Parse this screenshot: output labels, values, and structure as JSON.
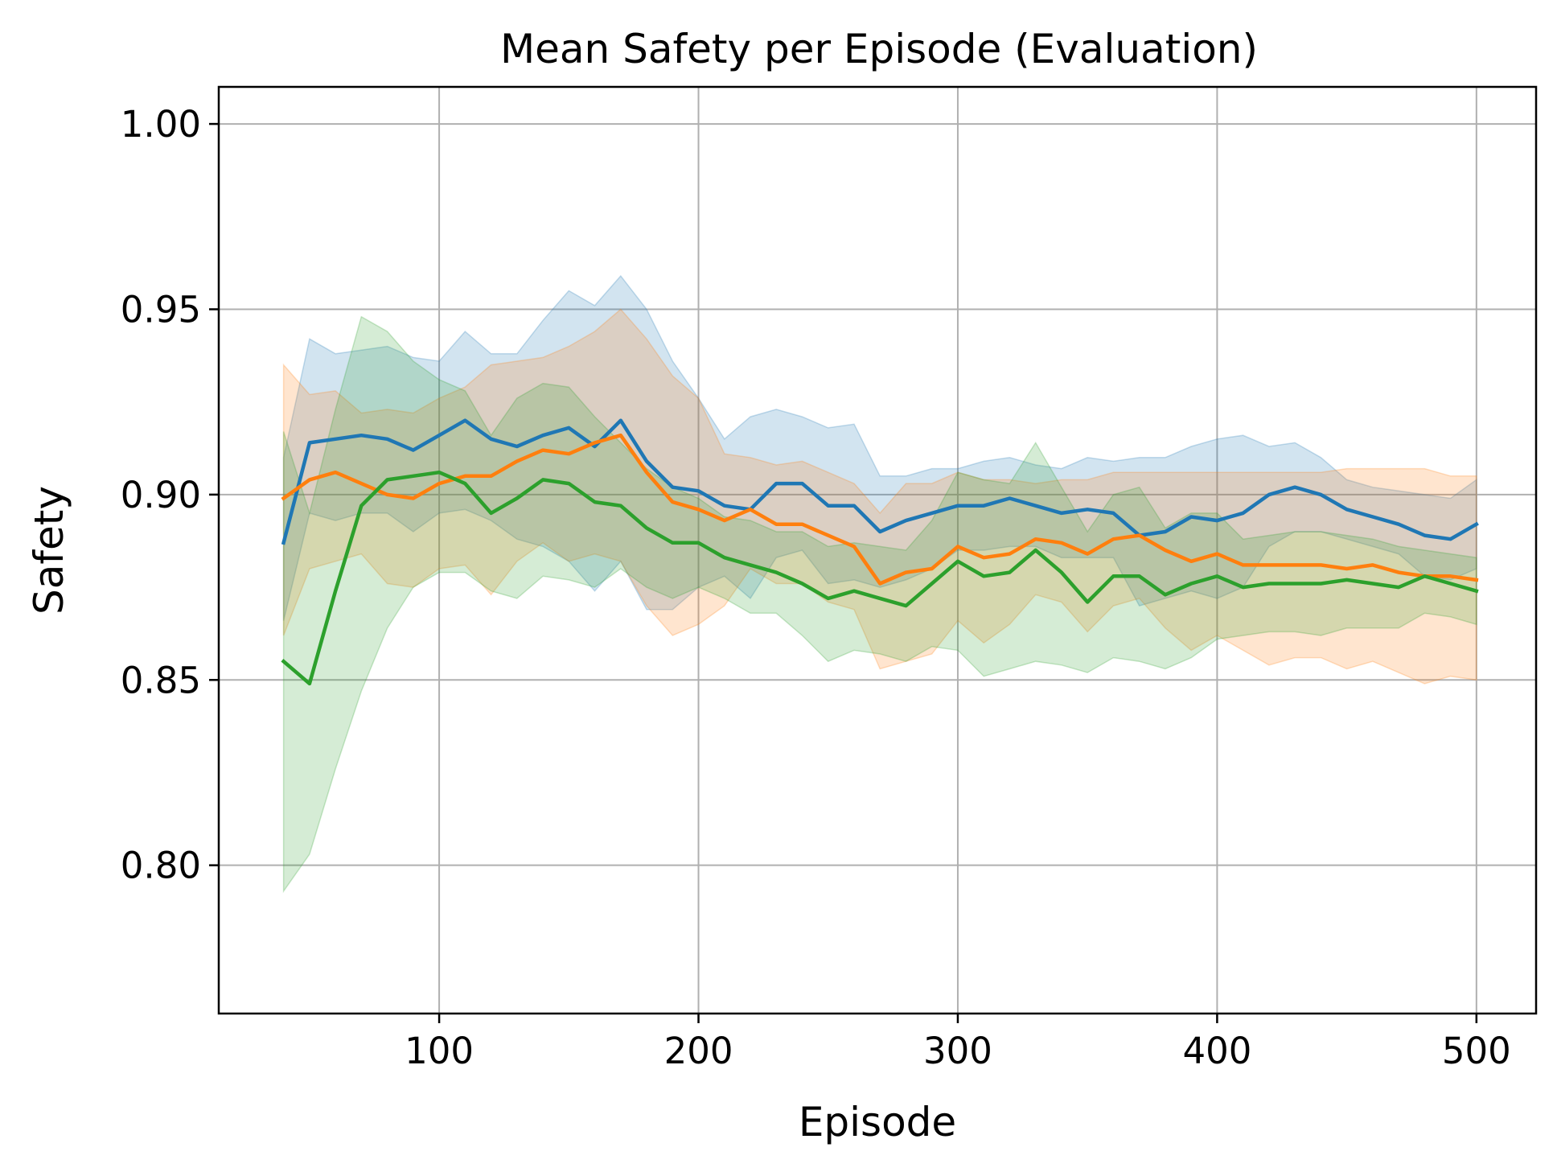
{
  "chart_data": {
    "type": "line",
    "title": "Mean Safety per Episode (Evaluation)",
    "xlabel": "Episode",
    "ylabel": "Safety",
    "xlim": [
      15,
      523
    ],
    "ylim": [
      0.76,
      1.01
    ],
    "xticks": [
      100,
      200,
      300,
      400,
      500
    ],
    "xtick_labels": [
      "100",
      "200",
      "300",
      "400",
      "500"
    ],
    "yticks": [
      0.8,
      0.85,
      0.9,
      0.95,
      1.0
    ],
    "ytick_labels": [
      "0.80",
      "0.85",
      "0.90",
      "0.95",
      "1.00"
    ],
    "grid": true,
    "x": [
      40,
      50,
      60,
      70,
      80,
      90,
      100,
      110,
      120,
      130,
      140,
      150,
      160,
      170,
      180,
      190,
      200,
      210,
      220,
      230,
      240,
      250,
      260,
      270,
      280,
      290,
      300,
      310,
      320,
      330,
      340,
      350,
      360,
      370,
      380,
      390,
      400,
      410,
      420,
      430,
      440,
      450,
      460,
      470,
      480,
      490,
      500
    ],
    "series": [
      {
        "name": "blue",
        "color": "#1f77b4",
        "values": [
          0.887,
          0.914,
          0.915,
          0.916,
          0.915,
          0.912,
          0.916,
          0.92,
          0.915,
          0.913,
          0.916,
          0.918,
          0.913,
          0.92,
          0.909,
          0.902,
          0.901,
          0.897,
          0.896,
          0.903,
          0.903,
          0.897,
          0.897,
          0.89,
          0.893,
          0.895,
          0.897,
          0.897,
          0.899,
          0.897,
          0.895,
          0.896,
          0.895,
          0.889,
          0.89,
          0.894,
          0.893,
          0.895,
          0.9,
          0.902,
          0.9,
          0.896,
          0.894,
          0.892,
          0.889,
          0.888,
          0.892
        ],
        "upper": [
          0.91,
          0.942,
          0.938,
          0.939,
          0.94,
          0.937,
          0.936,
          0.944,
          0.938,
          0.938,
          0.947,
          0.955,
          0.951,
          0.959,
          0.95,
          0.936,
          0.926,
          0.915,
          0.921,
          0.923,
          0.921,
          0.918,
          0.919,
          0.905,
          0.905,
          0.907,
          0.907,
          0.909,
          0.91,
          0.908,
          0.907,
          0.91,
          0.909,
          0.91,
          0.91,
          0.913,
          0.915,
          0.916,
          0.913,
          0.914,
          0.91,
          0.904,
          0.902,
          0.901,
          0.9,
          0.899,
          0.904
        ],
        "lower": [
          0.866,
          0.895,
          0.893,
          0.895,
          0.895,
          0.89,
          0.895,
          0.896,
          0.893,
          0.888,
          0.886,
          0.882,
          0.874,
          0.882,
          0.869,
          0.869,
          0.875,
          0.878,
          0.872,
          0.883,
          0.885,
          0.876,
          0.877,
          0.875,
          0.877,
          0.88,
          0.885,
          0.885,
          0.886,
          0.886,
          0.883,
          0.883,
          0.883,
          0.87,
          0.872,
          0.874,
          0.872,
          0.875,
          0.886,
          0.89,
          0.89,
          0.888,
          0.886,
          0.884,
          0.878,
          0.877,
          0.88
        ]
      },
      {
        "name": "orange",
        "color": "#ff7f0e",
        "values": [
          0.899,
          0.904,
          0.906,
          0.903,
          0.9,
          0.899,
          0.903,
          0.905,
          0.905,
          0.909,
          0.912,
          0.911,
          0.914,
          0.916,
          0.906,
          0.898,
          0.896,
          0.893,
          0.896,
          0.892,
          0.892,
          0.889,
          0.886,
          0.876,
          0.879,
          0.88,
          0.886,
          0.883,
          0.884,
          0.888,
          0.887,
          0.884,
          0.888,
          0.889,
          0.885,
          0.882,
          0.884,
          0.881,
          0.881,
          0.881,
          0.881,
          0.88,
          0.881,
          0.879,
          0.878,
          0.878,
          0.877
        ],
        "upper": [
          0.935,
          0.927,
          0.928,
          0.922,
          0.923,
          0.922,
          0.926,
          0.929,
          0.935,
          0.936,
          0.937,
          0.94,
          0.944,
          0.95,
          0.942,
          0.932,
          0.926,
          0.911,
          0.91,
          0.908,
          0.909,
          0.906,
          0.903,
          0.895,
          0.903,
          0.903,
          0.906,
          0.904,
          0.904,
          0.903,
          0.904,
          0.904,
          0.906,
          0.906,
          0.906,
          0.906,
          0.906,
          0.906,
          0.906,
          0.906,
          0.906,
          0.907,
          0.907,
          0.907,
          0.907,
          0.905,
          0.905
        ],
        "lower": [
          0.862,
          0.88,
          0.882,
          0.884,
          0.876,
          0.875,
          0.88,
          0.881,
          0.873,
          0.882,
          0.887,
          0.882,
          0.884,
          0.882,
          0.87,
          0.862,
          0.865,
          0.87,
          0.88,
          0.876,
          0.876,
          0.871,
          0.869,
          0.853,
          0.855,
          0.857,
          0.866,
          0.86,
          0.865,
          0.873,
          0.871,
          0.863,
          0.87,
          0.872,
          0.864,
          0.858,
          0.862,
          0.858,
          0.854,
          0.856,
          0.856,
          0.853,
          0.855,
          0.852,
          0.849,
          0.851,
          0.85
        ]
      },
      {
        "name": "green",
        "color": "#2ca02c",
        "values": [
          0.855,
          0.849,
          0.874,
          0.897,
          0.904,
          0.905,
          0.906,
          0.903,
          0.895,
          0.899,
          0.904,
          0.903,
          0.898,
          0.897,
          0.891,
          0.887,
          0.887,
          0.883,
          0.881,
          0.879,
          0.876,
          0.872,
          0.874,
          0.872,
          0.87,
          0.876,
          0.882,
          0.878,
          0.879,
          0.885,
          0.879,
          0.871,
          0.878,
          0.878,
          0.873,
          0.876,
          0.878,
          0.875,
          0.876,
          0.876,
          0.876,
          0.877,
          0.876,
          0.875,
          0.878,
          0.876,
          0.874
        ],
        "upper": [
          0.917,
          0.895,
          0.923,
          0.948,
          0.944,
          0.936,
          0.931,
          0.928,
          0.916,
          0.926,
          0.93,
          0.929,
          0.921,
          0.914,
          0.907,
          0.902,
          0.899,
          0.894,
          0.893,
          0.89,
          0.89,
          0.886,
          0.887,
          0.886,
          0.885,
          0.893,
          0.906,
          0.904,
          0.903,
          0.914,
          0.902,
          0.89,
          0.9,
          0.902,
          0.891,
          0.895,
          0.895,
          0.888,
          0.889,
          0.89,
          0.89,
          0.889,
          0.888,
          0.886,
          0.885,
          0.884,
          0.883
        ],
        "lower": [
          0.793,
          0.803,
          0.826,
          0.847,
          0.864,
          0.875,
          0.879,
          0.879,
          0.874,
          0.872,
          0.878,
          0.877,
          0.875,
          0.88,
          0.875,
          0.872,
          0.875,
          0.872,
          0.868,
          0.868,
          0.862,
          0.855,
          0.858,
          0.857,
          0.855,
          0.859,
          0.858,
          0.851,
          0.853,
          0.855,
          0.854,
          0.852,
          0.856,
          0.855,
          0.853,
          0.856,
          0.861,
          0.862,
          0.863,
          0.863,
          0.862,
          0.864,
          0.864,
          0.864,
          0.868,
          0.867,
          0.865
        ]
      }
    ]
  }
}
